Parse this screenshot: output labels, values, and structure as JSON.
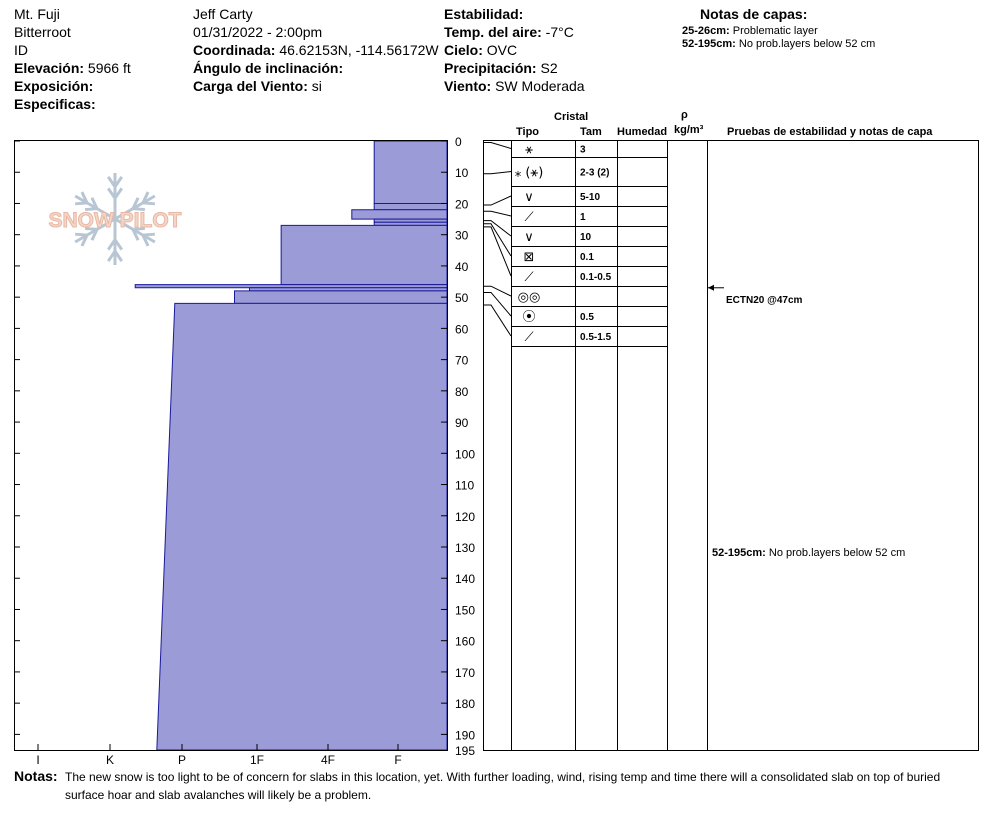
{
  "header": {
    "location": "Mt. Fuji",
    "range": "Bitterroot",
    "state": "ID",
    "elevation_label": "Elevación:",
    "elevation_value": "5966 ft",
    "exposure_label": "Exposición:",
    "specifics_label": "Especificas:",
    "observer": "Jeff Carty",
    "datetime": "01/31/2022 - 2:00pm",
    "coord_label": "Coordinada:",
    "coord_value": "46.62153N, -114.56172W",
    "slope_label": "Ángulo de inclinación:",
    "wind_load_label": "Carga del Viento:",
    "wind_load_value": "si",
    "stability_label": "Estabilidad:",
    "air_temp_label": "Temp. del aire:",
    "air_temp_value": "-7°C",
    "sky_label": "Cielo:",
    "sky_value": "OVC",
    "precip_label": "Precipitación:",
    "precip_value": "S2",
    "wind_label": "Viento:",
    "wind_value": "SW Moderada"
  },
  "layer_notes": {
    "title": "Notas de capas:",
    "items": [
      {
        "range": "25-26cm:",
        "text": "Problematic layer"
      },
      {
        "range": "52-195cm:",
        "text": "No prob.layers below 52 cm"
      }
    ]
  },
  "table_headers": {
    "cristal": "Cristal",
    "tipo": "Tipo",
    "tam": "Tam",
    "humedad": "Humedad",
    "rho": "ρ",
    "density_unit": "kg/m³",
    "tests": "Pruebas de estabilidad y notas de capa"
  },
  "logo_text": "SNOW PILOT",
  "stability_test": "ECTN20 @47cm",
  "deep_note": {
    "range": "52-195cm:",
    "text": "No prob.layers below 52 cm"
  },
  "footer": {
    "label": "Notas:",
    "line1": "The new snow is too light to be of concern for slabs in this location, yet. With further loading, wind, rising temp and time there will a consolidated slab on top of buried",
    "line2": "surface hoar and slab avalanches will likely be a problem."
  },
  "colors": {
    "profile_fill": "#9b9bd8",
    "profile_stroke": "#1a1a99"
  },
  "chart_data": {
    "type": "bar",
    "orientation": "horizontal",
    "xlabel": "",
    "ylabel": "",
    "hardness_ticks": [
      "I",
      "K",
      "P",
      "1F",
      "4F",
      "F"
    ],
    "depth_ticks": [
      0,
      10,
      20,
      30,
      40,
      50,
      60,
      70,
      80,
      90,
      100,
      110,
      120,
      130,
      140,
      150,
      160,
      170,
      180,
      190,
      195
    ],
    "ylim": [
      0,
      195
    ],
    "layers": [
      {
        "top": 0,
        "bottom": 20,
        "hardness": 0.34
      },
      {
        "top": 20,
        "bottom": 22,
        "hardness": 0.34
      },
      {
        "top": 22,
        "bottom": 25,
        "hardness": 0.66
      },
      {
        "top": 25,
        "bottom": 26,
        "hardness": 0.34
      },
      {
        "top": 26,
        "bottom": 27,
        "hardness": 0.34
      },
      {
        "top": 27,
        "bottom": 46,
        "hardness": 1.66
      },
      {
        "top": 46,
        "bottom": 47,
        "hardness": 3.65
      },
      {
        "top": 47,
        "bottom": 48,
        "hardness": 2.1
      },
      {
        "top": 48,
        "bottom": 52,
        "hardness": 2.3
      },
      {
        "top": 52,
        "bottom": 195,
        "hardness": 3.1,
        "hardness_bottom": 3.35
      }
    ],
    "crystal_rows": [
      {
        "grain": "PP",
        "size": "3"
      },
      {
        "grain": "DF (PP)",
        "size": "2-3 (2)"
      },
      {
        "grain": "SH",
        "size": "5-10"
      },
      {
        "grain": "DF",
        "size": "1"
      },
      {
        "grain": "SH",
        "size": "10"
      },
      {
        "grain": "FC",
        "size": "0.1"
      },
      {
        "grain": "DF",
        "size": "0.1-0.5"
      },
      {
        "grain": "MF",
        "size": ""
      },
      {
        "grain": "RG",
        "size": "0.5"
      },
      {
        "grain": "DF",
        "size": "0.5-1.5"
      }
    ]
  }
}
